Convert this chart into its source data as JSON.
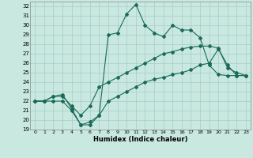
{
  "xlabel": "Humidex (Indice chaleur)",
  "xlim": [
    -0.5,
    23.5
  ],
  "ylim": [
    19,
    32.5
  ],
  "yticks": [
    19,
    20,
    21,
    22,
    23,
    24,
    25,
    26,
    27,
    28,
    29,
    30,
    31,
    32
  ],
  "xticks": [
    0,
    1,
    2,
    3,
    4,
    5,
    6,
    7,
    8,
    9,
    10,
    11,
    12,
    13,
    14,
    15,
    16,
    17,
    18,
    19,
    20,
    21,
    22,
    23
  ],
  "bg_color": "#c8e8e0",
  "grid_color": "#a8ccc4",
  "line_color": "#1a6a5a",
  "series_max": [
    22,
    22,
    22.5,
    22.7,
    21.2,
    19.5,
    19.8,
    20.5,
    29.0,
    29.2,
    31.2,
    32.2,
    30.0,
    29.2,
    28.8,
    30.0,
    29.5,
    29.5,
    28.7,
    25.8,
    24.8,
    24.7,
    24.7,
    24.7
  ],
  "series_mean": [
    22,
    22,
    22.5,
    22.5,
    21.5,
    20.5,
    21.5,
    23.5,
    24.0,
    24.5,
    25.0,
    25.5,
    26.0,
    26.5,
    27.0,
    27.2,
    27.5,
    27.7,
    27.8,
    27.8,
    27.6,
    25.5,
    25.0,
    24.7
  ],
  "series_min": [
    22,
    22,
    22.0,
    22.0,
    21.0,
    19.5,
    19.5,
    20.5,
    22.0,
    22.5,
    23.0,
    23.5,
    24.0,
    24.3,
    24.5,
    24.8,
    25.0,
    25.3,
    25.8,
    26.0,
    27.5,
    25.8,
    24.7,
    24.7
  ]
}
